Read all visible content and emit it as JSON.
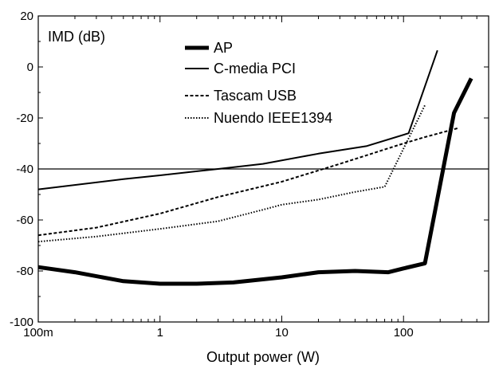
{
  "chart_data": {
    "type": "line",
    "xlabel": "Output power (W)",
    "ylabel": "IMD (dB)",
    "x_scale": "log",
    "xlim": [
      0.1,
      500
    ],
    "ylim": [
      -100,
      20
    ],
    "x_ticks": [
      {
        "value": 0.1,
        "label": "100m"
      },
      {
        "value": 1,
        "label": "1"
      },
      {
        "value": 10,
        "label": "10"
      },
      {
        "value": 100,
        "label": "100"
      }
    ],
    "y_ticks": [
      20,
      0,
      -20,
      -40,
      -60,
      -80,
      -100
    ],
    "reference_line_y": -40,
    "legend_position": "top-center",
    "series": [
      {
        "name": "AP",
        "style": "thick-solid",
        "x": [
          0.1,
          0.2,
          0.5,
          1,
          2,
          4,
          10,
          20,
          40,
          75,
          100,
          150,
          260,
          360
        ],
        "y": [
          -78.5,
          -80.5,
          -84,
          -85,
          -85,
          -84.5,
          -82.5,
          -80.5,
          -80,
          -80.5,
          -79,
          -77,
          -18,
          -4.5
        ]
      },
      {
        "name": "C-media PCI",
        "style": "solid",
        "x": [
          0.1,
          0.5,
          1,
          3,
          7,
          20,
          50,
          110,
          190
        ],
        "y": [
          -48,
          -44,
          -42.5,
          -40,
          -38,
          -34,
          -31,
          -26,
          6.5
        ]
      },
      {
        "name": "Tascam USB",
        "style": "dashed",
        "x": [
          0.1,
          0.3,
          1,
          3,
          10,
          30,
          100,
          150,
          280
        ],
        "y": [
          -66,
          -63,
          -57.5,
          -51,
          -45,
          -38,
          -30,
          -27.5,
          -24
        ]
      },
      {
        "name": "Nuendo IEEE1394",
        "style": "dotted",
        "x": [
          0.1,
          0.3,
          1,
          3,
          7,
          10,
          20,
          40,
          70,
          150
        ],
        "y": [
          -68.5,
          -66.5,
          -63.5,
          -60.5,
          -56,
          -54,
          -52,
          -49,
          -47,
          -15
        ]
      }
    ]
  },
  "legend": {
    "items": [
      {
        "key": "ap",
        "label": "AP"
      },
      {
        "key": "cmedia",
        "label": "C-media PCI"
      },
      {
        "key": "tascam",
        "label": "Tascam USB"
      },
      {
        "key": "nuendo",
        "label": "Nuendo IEEE1394"
      }
    ]
  }
}
